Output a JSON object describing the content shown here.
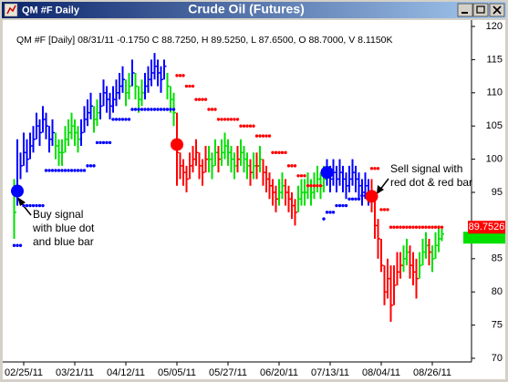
{
  "window": {
    "title": "QM #F Daily"
  },
  "chart_data": {
    "type": "ohlc",
    "title": "Crude Oil (Futures)",
    "subtitle": "QM #F [Daily] 08/31/11  -0.1750 C 88.7250, H 89.5250, L 87.6500, O 88.7000, V 8.1150K",
    "categories": [
      null,
      null,
      null,
      "02/25/11",
      null,
      null,
      null,
      null,
      null,
      null,
      null,
      null,
      null,
      null,
      null,
      null,
      null,
      null,
      null,
      "03/21/11",
      null,
      null,
      null,
      null,
      null,
      null,
      null,
      null,
      null,
      null,
      null,
      null,
      null,
      null,
      null,
      "04/12/11",
      null,
      null,
      null,
      null,
      null,
      null,
      null,
      null,
      null,
      null,
      null,
      null,
      null,
      null,
      null,
      "05/05/11",
      null,
      null,
      null,
      null,
      null,
      null,
      null,
      null,
      null,
      null,
      null,
      null,
      null,
      null,
      null,
      "05/27/11",
      null,
      null,
      null,
      null,
      null,
      null,
      null,
      null,
      null,
      null,
      null,
      null,
      null,
      null,
      null,
      "06/20/11",
      null,
      null,
      null,
      null,
      null,
      null,
      null,
      null,
      null,
      null,
      null,
      null,
      null,
      null,
      null,
      "07/13/11",
      null,
      null,
      null,
      null,
      null,
      null,
      null,
      null,
      null,
      null,
      null,
      null,
      null,
      null,
      null,
      "08/04/11",
      null,
      null,
      null,
      null,
      null,
      null,
      null,
      null,
      null,
      null,
      null,
      null,
      null,
      null,
      null,
      "08/26/11",
      null,
      null,
      null
    ],
    "ohlc": {
      "high": [
        97,
        103,
        101,
        104,
        103,
        104,
        105,
        107,
        106,
        108,
        107,
        105,
        106,
        104,
        103,
        103,
        105,
        106,
        107,
        106,
        105,
        106,
        108,
        109,
        110,
        108,
        109,
        110,
        112,
        111,
        110,
        111,
        112,
        113,
        114,
        112,
        113,
        115,
        113,
        111,
        112,
        113,
        114,
        115,
        116,
        115,
        114,
        115,
        113,
        111,
        110,
        107,
        101,
        100,
        99,
        101,
        102,
        103,
        101,
        100,
        102,
        102,
        101,
        103,
        102,
        103,
        104,
        103,
        102,
        101,
        102,
        103,
        102,
        101,
        100,
        101,
        101,
        102,
        100,
        99,
        98,
        97,
        96,
        97,
        98,
        97,
        96,
        95,
        94,
        96,
        97,
        97,
        98,
        97,
        98,
        99,
        98,
        99,
        100,
        99,
        100,
        99,
        100,
        99,
        98,
        99,
        100,
        99,
        98,
        97,
        98,
        97,
        97,
        95,
        91,
        88,
        84,
        85,
        84,
        84,
        86,
        86,
        87,
        88,
        87,
        86,
        85,
        86,
        88,
        89,
        88,
        87,
        89,
        90,
        89.525
      ],
      "low": [
        88,
        93,
        97,
        99,
        98,
        100,
        101,
        103,
        102,
        104,
        103,
        101,
        102,
        100,
        99,
        99,
        101,
        102,
        103,
        102,
        101,
        102,
        104,
        105,
        106,
        104,
        105,
        106,
        108,
        107,
        106,
        107,
        108,
        109,
        110,
        108,
        109,
        111,
        109,
        107,
        108,
        109,
        110,
        111,
        112,
        111,
        110,
        112,
        109,
        107,
        105,
        96,
        97,
        96,
        95,
        97,
        98,
        99,
        97,
        96,
        98,
        98,
        97,
        99,
        98,
        99,
        100,
        99,
        98,
        97,
        98,
        99,
        98,
        97,
        96,
        97,
        97,
        98,
        96,
        95,
        94,
        93,
        92,
        93,
        94,
        93,
        92,
        91,
        90,
        92,
        93,
        93,
        94,
        93,
        94,
        95,
        94,
        95,
        96,
        95,
        96,
        95,
        96,
        95,
        94,
        95,
        96,
        95,
        94,
        93,
        94,
        93,
        92,
        88,
        85,
        83,
        78,
        79,
        75.5,
        78,
        81,
        82,
        83,
        84,
        82,
        81,
        79,
        82,
        84,
        85,
        84,
        83,
        85,
        86,
        87.65
      ],
      "close": [
        92,
        96,
        99,
        101,
        100,
        102,
        103,
        105,
        104,
        106,
        105,
        103,
        104,
        102,
        101,
        101,
        103,
        104,
        105,
        104,
        103,
        104,
        106,
        107,
        108,
        106,
        107,
        108,
        110,
        109,
        108,
        109,
        110,
        111,
        112,
        110,
        111,
        113,
        111,
        109,
        110,
        111,
        112,
        113,
        114,
        113,
        112,
        114,
        111,
        109,
        107,
        101,
        99,
        98,
        97,
        99,
        100,
        101,
        99,
        98,
        100,
        100,
        99,
        101,
        100,
        101,
        102,
        101,
        100,
        99,
        100,
        101,
        100,
        99,
        98,
        99,
        99,
        100,
        98,
        97,
        96,
        95,
        94,
        95,
        96,
        95,
        94,
        93,
        92,
        94,
        95,
        95,
        96,
        95,
        96,
        97,
        96,
        97,
        98,
        97,
        98,
        97,
        98,
        97,
        96,
        97,
        98,
        97,
        96,
        95,
        96,
        95,
        94,
        90,
        88,
        84,
        80,
        82,
        78,
        81,
        83,
        84,
        85,
        86,
        84,
        83,
        82,
        84,
        86,
        87,
        86,
        85,
        87,
        88,
        88.725
      ],
      "colors": [
        "#00e000",
        "#0000ff",
        "#0000ff",
        "#0000ff",
        "#0000ff",
        "#0000ff",
        "#0000ff",
        "#0000ff",
        "#0000ff",
        "#0000ff",
        "#0000ff",
        "#0000ff",
        "#0000ff",
        "#00e000",
        "#00e000",
        "#00e000",
        "#00e000",
        "#00e000",
        "#00e000",
        "#00e000",
        "#00e000",
        "#0000ff",
        "#0000ff",
        "#0000ff",
        "#0000ff",
        "#00e000",
        "#00e000",
        "#0000ff",
        "#0000ff",
        "#0000ff",
        "#0000ff",
        "#0000ff",
        "#0000ff",
        "#0000ff",
        "#0000ff",
        "#00e000",
        "#00e000",
        "#0000ff",
        "#00e000",
        "#00e000",
        "#00e000",
        "#0000ff",
        "#0000ff",
        "#0000ff",
        "#0000ff",
        "#0000ff",
        "#0000ff",
        "#0000ff",
        "#00e000",
        "#00e000",
        "#00e000",
        "#ff0000",
        "#ff0000",
        "#ff0000",
        "#ff0000",
        "#ff0000",
        "#ff0000",
        "#ff0000",
        "#ff0000",
        "#ff0000",
        "#ff0000",
        "#00e000",
        "#00e000",
        "#00e000",
        "#ff0000",
        "#00e000",
        "#00e000",
        "#00e000",
        "#00e000",
        "#00e000",
        "#ff0000",
        "#00e000",
        "#00e000",
        "#00e000",
        "#ff0000",
        "#00e000",
        "#ff0000",
        "#00e000",
        "#ff0000",
        "#ff0000",
        "#ff0000",
        "#ff0000",
        "#ff0000",
        "#00e000",
        "#00e000",
        "#ff0000",
        "#ff0000",
        "#ff0000",
        "#ff0000",
        "#00e000",
        "#00e000",
        "#00e000",
        "#00e000",
        "#00e000",
        "#00e000",
        "#00e000",
        "#00e000",
        "#00e000",
        "#0000ff",
        "#0000ff",
        "#0000ff",
        "#0000ff",
        "#0000ff",
        "#0000ff",
        "#0000ff",
        "#0000ff",
        "#0000ff",
        "#0000ff",
        "#0000ff",
        "#0000ff",
        "#0000ff",
        "#0000ff",
        "#ff0000",
        "#ff0000",
        "#ff0000",
        "#ff0000",
        "#ff0000",
        "#ff0000",
        "#ff0000",
        "#ff0000",
        "#ff0000",
        "#ff0000",
        "#00e000",
        "#00e000",
        "#ff0000",
        "#ff0000",
        "#ff0000",
        "#00e000",
        "#00e000",
        "#00e000",
        "#ff0000",
        "#00e000",
        "#00e000",
        "#00e000",
        "#00e000"
      ]
    },
    "series": [
      {
        "color": "#0000ff",
        "values": [
          87,
          87,
          87,
          93,
          93,
          93,
          93,
          93,
          93,
          93,
          98.3,
          98.3,
          98.3,
          98.3,
          98.3,
          98.3,
          98.3,
          98.3,
          98.3,
          98.3,
          98.3,
          98.3,
          98.3,
          99,
          99,
          99,
          102.5,
          102.5,
          102.5,
          102.5,
          102.5,
          106,
          106,
          106,
          106,
          106,
          106,
          107.5,
          107.5,
          107.5,
          107.5,
          107.5,
          107.5,
          107.5,
          107.5,
          107.5,
          107.5,
          107.5,
          107.5,
          107.5,
          107.5,
          null,
          null,
          null,
          null,
          null,
          null,
          null,
          null,
          null,
          null,
          null,
          null,
          null,
          null,
          null,
          null,
          null,
          null,
          null,
          null,
          null,
          null,
          null,
          null,
          null,
          null,
          null,
          null,
          null,
          null,
          null,
          null,
          null,
          null,
          null,
          null,
          null,
          null,
          null,
          null,
          null,
          null,
          null,
          null,
          null,
          null,
          91,
          92,
          92,
          92,
          93,
          93,
          93,
          93,
          94,
          94,
          94,
          94,
          94.5,
          94.5,
          94.5,
          null,
          null,
          null,
          null,
          null,
          null,
          null,
          null,
          null,
          null,
          null,
          null,
          null,
          null,
          null,
          null,
          null,
          null,
          null,
          null,
          null,
          null,
          null
        ]
      },
      {
        "color": "#ff0000",
        "values": [
          null,
          null,
          null,
          null,
          null,
          null,
          null,
          null,
          null,
          null,
          null,
          null,
          null,
          null,
          null,
          null,
          null,
          null,
          null,
          null,
          null,
          null,
          null,
          null,
          null,
          null,
          null,
          null,
          null,
          null,
          null,
          null,
          null,
          null,
          null,
          null,
          null,
          null,
          null,
          null,
          null,
          null,
          null,
          null,
          null,
          null,
          null,
          null,
          null,
          null,
          null,
          112.6,
          112.6,
          112.6,
          111,
          111,
          111,
          109,
          109,
          109,
          109,
          107.5,
          107.5,
          107.5,
          106,
          106,
          106,
          106,
          106,
          106,
          106,
          105,
          105,
          105,
          105,
          105,
          103.5,
          103.5,
          103.5,
          103.5,
          103.5,
          101,
          101,
          101,
          101,
          101,
          99,
          99,
          99,
          97.5,
          97.5,
          97.5,
          96,
          96,
          96,
          96,
          96,
          null,
          null,
          null,
          null,
          null,
          null,
          null,
          null,
          null,
          null,
          null,
          null,
          null,
          null,
          null,
          98.6,
          98.6,
          98.6,
          92.4,
          92.4,
          92.4,
          89.7526,
          89.7526,
          89.7526,
          89.7526,
          89.7526,
          89.7526,
          89.7526,
          89.7526,
          89.7526,
          89.7526,
          89.7526,
          89.7526,
          89.7526,
          89.7526,
          89.7526,
          89.7526,
          89.7526
        ]
      }
    ],
    "signals": {
      "x": [
        1,
        51,
        98,
        112
      ],
      "values": [
        95.2,
        102.2,
        98,
        94.4
      ],
      "colors": [
        "#0000ff",
        "#ff0000",
        "#0000ff",
        "#ff0000"
      ]
    },
    "annotations": [
      [
        "Buy signal",
        "with blue dot",
        "and blue bar"
      ],
      [
        "Sell signal with",
        "red dot & red bar"
      ]
    ],
    "ylim": [
      70,
      120
    ],
    "yticks": [
      70,
      75,
      80,
      85,
      90,
      95,
      100,
      105,
      110,
      115,
      120
    ],
    "grid": false
  }
}
